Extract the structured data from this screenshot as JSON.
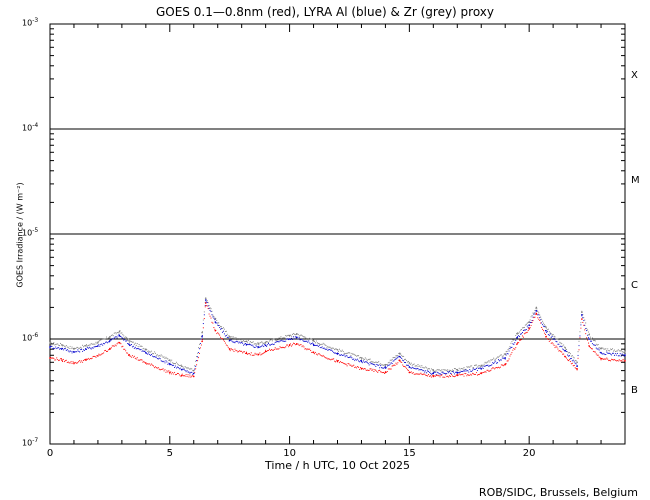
{
  "chart_data": {
    "type": "scatter",
    "title": "GOES 0.1—0.8nm (red), LYRA Al (blue) & Zr (grey) proxy",
    "xlabel": "Time / h UTC, 10 Oct 2025",
    "ylabel": "GOES Irradiance / (W m⁻²)",
    "yscale": "log",
    "xlim": [
      0,
      24
    ],
    "ylim": [
      1e-07,
      0.001
    ],
    "x_ticks": [
      "0",
      "5",
      "10",
      "15",
      "20"
    ],
    "y_ticks": [
      {
        "base": "10",
        "exp": "-3"
      },
      {
        "base": "10",
        "exp": "-4"
      },
      {
        "base": "10",
        "exp": "-5"
      },
      {
        "base": "10",
        "exp": "-6"
      },
      {
        "base": "10",
        "exp": "-7"
      }
    ],
    "flare_classes": [
      "X",
      "M",
      "C",
      "B"
    ],
    "grid": "horizontal lines at 1e-6, 1e-5, 1e-4",
    "colors": {
      "goes": "#ff0000",
      "al": "#0000cc",
      "zr": "#808080"
    },
    "series": [
      {
        "name": "Zr",
        "x": [
          0,
          0.5,
          1,
          1.5,
          2,
          2.5,
          2.9,
          3.3,
          4,
          5,
          5.5,
          6,
          6.35,
          6.5,
          6.9,
          7.5,
          8.2,
          8.7,
          9,
          10,
          10.3,
          11,
          12,
          13,
          14,
          14.6,
          15,
          16,
          17,
          18,
          19,
          19.5,
          20,
          20.3,
          20.7,
          21.5,
          22,
          22.2,
          22.5,
          23,
          24
        ],
        "y": [
          9.1e-07,
          8.8e-07,
          8.1e-07,
          8.6e-07,
          9.3e-07,
          1.05e-06,
          1.18e-06,
          9.6e-07,
          8e-07,
          6.3e-07,
          5.5e-07,
          5e-07,
          1.15e-06,
          2.45e-06,
          1.55e-06,
          1.05e-06,
          9.5e-07,
          9e-07,
          9.3e-07,
          1.08e-06,
          1.12e-06,
          9.6e-07,
          7.9e-07,
          6.6e-07,
          5.7e-07,
          7.3e-07,
          5.9e-07,
          5e-07,
          5.1e-07,
          5.6e-07,
          7.2e-07,
          1.12e-06,
          1.45e-06,
          2e-06,
          1.3e-06,
          8.3e-07,
          6e-07,
          1.8e-06,
          1.1e-06,
          8.1e-07,
          7.6e-07
        ]
      },
      {
        "name": "Al",
        "x": [
          0,
          0.5,
          1,
          1.5,
          2,
          2.5,
          2.9,
          3.3,
          4,
          5,
          5.5,
          6,
          6.35,
          6.5,
          6.9,
          7.5,
          8.2,
          8.7,
          9,
          10,
          10.3,
          11,
          12,
          13,
          14,
          14.6,
          15,
          16,
          17,
          18,
          19,
          19.5,
          20,
          20.3,
          20.7,
          21.5,
          22,
          22.2,
          22.5,
          23,
          24
        ],
        "y": [
          8.4e-07,
          8.1e-07,
          7.5e-07,
          8e-07,
          8.6e-07,
          9.6e-07,
          1.08e-06,
          8.9e-07,
          7.4e-07,
          5.8e-07,
          5.1e-07,
          4.7e-07,
          1.05e-06,
          2.35e-06,
          1.45e-06,
          9.7e-07,
          8.8e-07,
          8.4e-07,
          8.7e-07,
          1e-06,
          1.04e-06,
          8.9e-07,
          7.3e-07,
          6.1e-07,
          5.3e-07,
          6.8e-07,
          5.4e-07,
          4.7e-07,
          4.8e-07,
          5.2e-07,
          6.6e-07,
          1.03e-06,
          1.35e-06,
          1.85e-06,
          1.2e-06,
          7.7e-07,
          5.5e-07,
          1.7e-06,
          1e-06,
          7.4e-07,
          7e-07
        ]
      },
      {
        "name": "GOES",
        "x": [
          0,
          0.5,
          1,
          1.5,
          2,
          2.5,
          2.9,
          3.3,
          4,
          5,
          5.5,
          6,
          6.35,
          6.5,
          6.9,
          7.5,
          8.2,
          8.7,
          9,
          10,
          10.3,
          11,
          12,
          13,
          14,
          14.6,
          15,
          16,
          17,
          18,
          19,
          19.5,
          20,
          20.3,
          20.7,
          21.5,
          22,
          22.2,
          22.5,
          23,
          24
        ],
        "y": [
          6.6e-07,
          6.3e-07,
          5.9e-07,
          6.3e-07,
          6.9e-07,
          8.1e-07,
          9.2e-07,
          7.1e-07,
          5.9e-07,
          4.8e-07,
          4.5e-07,
          4.4e-07,
          9.5e-07,
          2.2e-06,
          1.2e-06,
          8e-07,
          7.3e-07,
          7.1e-07,
          7.6e-07,
          8.7e-07,
          9e-07,
          7.5e-07,
          6.1e-07,
          5.2e-07,
          4.8e-07,
          6.2e-07,
          4.8e-07,
          4.4e-07,
          4.5e-07,
          4.7e-07,
          5.7e-07,
          9e-07,
          1.25e-06,
          1.75e-06,
          1.05e-06,
          6.8e-07,
          5.2e-07,
          1.55e-06,
          8.6e-07,
          6.5e-07,
          6.2e-07
        ]
      }
    ]
  },
  "credit": "ROB/SIDC, Brussels, Belgium"
}
